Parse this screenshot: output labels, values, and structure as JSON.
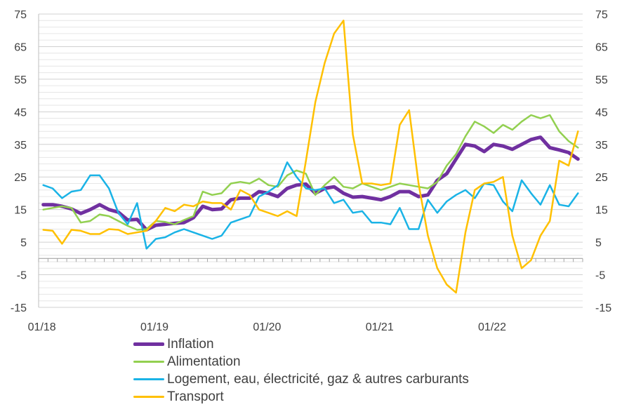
{
  "chart_data": {
    "type": "line",
    "title": "",
    "xlabel": "",
    "ylabel": "",
    "ylim": [
      -15,
      75
    ],
    "yticks": [
      -15,
      -5,
      5,
      15,
      25,
      35,
      45,
      55,
      65,
      75
    ],
    "x_tick_labels": [
      "01/18",
      "01/19",
      "01/20",
      "01/21",
      "01/22"
    ],
    "x_tick_index": [
      0,
      12,
      24,
      36,
      48
    ],
    "n_points": 58,
    "grid": true,
    "legend_position": "bottom",
    "series": [
      {
        "name": "Inflation",
        "color": "#7030A0",
        "width": 5,
        "values": [
          16.5,
          16.5,
          16,
          15.2,
          13.8,
          15,
          16.5,
          15,
          14.2,
          11.8,
          12,
          8.8,
          10.2,
          10.5,
          10.8,
          11,
          12.5,
          16,
          15,
          15.2,
          18,
          18.5,
          18.5,
          20.5,
          20,
          19,
          21.5,
          22.5,
          22.8,
          20,
          21.5,
          22,
          20,
          18.8,
          19,
          18.5,
          18,
          19,
          20.5,
          20.5,
          19,
          19.5,
          24,
          26,
          30.5,
          35,
          34.5,
          32.8,
          35,
          34.5,
          33.5,
          35,
          36.5,
          37.2,
          34,
          33.3,
          32.5,
          30.5
        ]
      },
      {
        "name": "Alimentation",
        "color": "#92D050",
        "width": 2.5,
        "values": [
          15,
          15.5,
          16,
          15.5,
          11,
          11.5,
          13.5,
          13,
          11.5,
          10,
          8.8,
          9,
          11.5,
          11.2,
          10.5,
          11.8,
          13,
          20.5,
          19.5,
          20,
          23,
          23.5,
          23,
          24.5,
          22.5,
          22,
          25.5,
          27,
          26,
          19.5,
          22.5,
          25,
          22,
          21.5,
          23,
          22,
          21,
          22,
          23,
          22.5,
          22,
          21.5,
          23.5,
          28.5,
          32,
          37.5,
          42,
          40.5,
          38.5,
          41,
          39.5,
          42,
          44,
          43,
          44,
          39,
          36,
          34
        ]
      },
      {
        "name": "Logement, eau, électricité, gaz & autres carburants",
        "color": "#1AB3E6",
        "width": 2.5,
        "values": [
          22.5,
          21.5,
          18.5,
          20.5,
          21,
          25.5,
          25.5,
          21.5,
          14,
          10.5,
          17,
          3,
          6,
          6.5,
          8,
          9,
          8,
          7,
          6,
          7,
          11,
          12,
          13,
          19,
          20.5,
          22.5,
          29.5,
          25,
          21.5,
          21,
          21.5,
          17,
          18,
          14,
          14.5,
          11,
          11,
          10.5,
          15.5,
          9,
          9,
          18,
          14,
          17.5,
          19.5,
          21,
          18.5,
          23,
          22.5,
          17.5,
          14.5,
          24,
          20,
          16.5,
          22.5,
          16.5,
          16,
          20
        ]
      },
      {
        "name": "Transport",
        "color": "#FFC000",
        "width": 2.5,
        "values": [
          8.8,
          8.5,
          4.5,
          8.8,
          8.5,
          7.5,
          7.5,
          9,
          8.8,
          7.5,
          8,
          8.5,
          11.5,
          15.5,
          14.5,
          16.5,
          16,
          17.5,
          17,
          17,
          15,
          21,
          19.5,
          15,
          14,
          13,
          14.5,
          13,
          30,
          48,
          60,
          69,
          73,
          38,
          23,
          23,
          22.5,
          23,
          41,
          45.5,
          23,
          7,
          -3,
          -8,
          -10.5,
          8,
          21,
          23,
          23.5,
          25,
          7,
          -3,
          -0.5,
          7,
          11.5,
          30,
          28.5,
          39
        ]
      }
    ]
  }
}
